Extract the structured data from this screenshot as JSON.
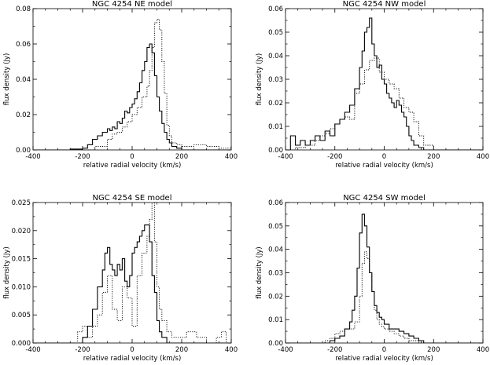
{
  "figure": {
    "background": "#ffffff",
    "line_color": "#000000"
  },
  "chart_data": [
    {
      "type": "line",
      "title": "NGC 4254 NE model",
      "xlabel": "relative radial velocity (km/s)",
      "ylabel": "flux density (Jy)",
      "xlim": [
        -400,
        400
      ],
      "ylim": [
        0,
        0.08
      ],
      "xticks": [
        -400,
        -200,
        0,
        200,
        400
      ],
      "yticks": [
        0.0,
        0.02,
        0.04,
        0.06,
        0.08
      ],
      "ytick_labels": [
        "0.00",
        "0.02",
        "0.04",
        "0.06",
        "0.08"
      ],
      "series": [
        {
          "style": "solid",
          "x": [
            -400,
            -300,
            -250,
            -200,
            -180,
            -160,
            -140,
            -120,
            -100,
            -90,
            -80,
            -70,
            -60,
            -50,
            -40,
            -30,
            -20,
            -10,
            0,
            10,
            20,
            30,
            40,
            50,
            60,
            70,
            80,
            90,
            100,
            110,
            120,
            130,
            140,
            150,
            160,
            180,
            200,
            300,
            400
          ],
          "y": [
            0.0,
            0.0,
            0.0005,
            0.001,
            0.003,
            0.006,
            0.008,
            0.01,
            0.012,
            0.011,
            0.013,
            0.012,
            0.016,
            0.015,
            0.018,
            0.022,
            0.021,
            0.024,
            0.026,
            0.029,
            0.033,
            0.038,
            0.045,
            0.05,
            0.058,
            0.06,
            0.055,
            0.042,
            0.03,
            0.022,
            0.015,
            0.01,
            0.006,
            0.004,
            0.002,
            0.001,
            0.0,
            0.0,
            0.0
          ]
        },
        {
          "style": "dotted",
          "x": [
            -400,
            -200,
            -150,
            -100,
            -80,
            -60,
            -40,
            -20,
            0,
            20,
            40,
            60,
            70,
            80,
            90,
            100,
            110,
            120,
            130,
            140,
            150,
            160,
            180,
            200,
            250,
            300,
            350,
            400
          ],
          "y": [
            0.0,
            0.0,
            0.002,
            0.006,
            0.009,
            0.01,
            0.013,
            0.016,
            0.02,
            0.024,
            0.03,
            0.036,
            0.045,
            0.058,
            0.072,
            0.074,
            0.068,
            0.05,
            0.032,
            0.014,
            0.008,
            0.004,
            0.003,
            0.002,
            0.003,
            0.002,
            0.001,
            0.0
          ]
        }
      ]
    },
    {
      "type": "line",
      "title": "NGC 4254 NW model",
      "xlabel": "relative radial velocity (km/s)",
      "ylabel": "flux density (Jy)",
      "xlim": [
        -400,
        400
      ],
      "ylim": [
        0,
        0.06
      ],
      "xticks": [
        -400,
        -200,
        0,
        200,
        400
      ],
      "yticks": [
        0.0,
        0.01,
        0.02,
        0.03,
        0.04,
        0.05,
        0.06
      ],
      "ytick_labels": [
        "0.00",
        "0.01",
        "0.02",
        "0.03",
        "0.04",
        "0.05",
        "0.06"
      ],
      "series": [
        {
          "style": "solid",
          "x": [
            -400,
            -380,
            -360,
            -340,
            -320,
            -300,
            -280,
            -260,
            -240,
            -220,
            -200,
            -180,
            -160,
            -140,
            -120,
            -100,
            -90,
            -80,
            -70,
            -60,
            -50,
            -40,
            -30,
            -20,
            -10,
            0,
            10,
            20,
            30,
            40,
            50,
            60,
            70,
            80,
            90,
            100,
            110,
            120,
            140,
            160,
            200,
            400
          ],
          "y": [
            0.0,
            0.006,
            0.002,
            0.004,
            0.002,
            0.004,
            0.006,
            0.004,
            0.008,
            0.006,
            0.011,
            0.013,
            0.016,
            0.019,
            0.026,
            0.035,
            0.042,
            0.05,
            0.052,
            0.056,
            0.045,
            0.04,
            0.035,
            0.036,
            0.03,
            0.028,
            0.024,
            0.022,
            0.02,
            0.018,
            0.021,
            0.019,
            0.016,
            0.014,
            0.01,
            0.006,
            0.004,
            0.002,
            0.001,
            0.0,
            0.0,
            0.0
          ]
        },
        {
          "style": "dotted",
          "x": [
            -400,
            -360,
            -320,
            -280,
            -260,
            -240,
            -220,
            -200,
            -180,
            -160,
            -140,
            -120,
            -100,
            -80,
            -60,
            -40,
            -20,
            0,
            20,
            40,
            60,
            80,
            100,
            120,
            140,
            160,
            200,
            400
          ],
          "y": [
            0.0,
            0.001,
            0.002,
            0.004,
            0.006,
            0.007,
            0.009,
            0.011,
            0.013,
            0.014,
            0.013,
            0.024,
            0.028,
            0.034,
            0.038,
            0.039,
            0.033,
            0.03,
            0.028,
            0.026,
            0.022,
            0.018,
            0.016,
            0.012,
            0.006,
            0.002,
            0.0,
            0.0
          ]
        }
      ]
    },
    {
      "type": "line",
      "title": "NGC 4254 SE model",
      "xlabel": "relative radial velocity (km/s)",
      "ylabel": "flux density (Jy)",
      "xlim": [
        -400,
        400
      ],
      "ylim": [
        0,
        0.025
      ],
      "xticks": [
        -400,
        -200,
        0,
        200,
        400
      ],
      "yticks": [
        0.0,
        0.005,
        0.01,
        0.015,
        0.02,
        0.025
      ],
      "ytick_labels": [
        "0.000",
        "0.005",
        "0.010",
        "0.015",
        "0.020",
        "0.025"
      ],
      "series": [
        {
          "style": "solid",
          "x": [
            -400,
            -220,
            -200,
            -180,
            -160,
            -140,
            -120,
            -110,
            -100,
            -90,
            -80,
            -70,
            -60,
            -50,
            -40,
            -30,
            -20,
            -10,
            0,
            10,
            20,
            30,
            40,
            50,
            60,
            70,
            80,
            90,
            100,
            110,
            120,
            140,
            400
          ],
          "y": [
            0.0,
            0.0,
            0.001,
            0.003,
            0.006,
            0.01,
            0.013,
            0.016,
            0.017,
            0.014,
            0.013,
            0.012,
            0.014,
            0.013,
            0.015,
            0.011,
            0.01,
            0.012,
            0.016,
            0.017,
            0.018,
            0.019,
            0.02,
            0.021,
            0.021,
            0.018,
            0.012,
            0.009,
            0.004,
            0.002,
            0.001,
            0.0,
            0.0
          ]
        },
        {
          "style": "dotted",
          "x": [
            -400,
            -240,
            -220,
            -200,
            -180,
            -160,
            -140,
            -120,
            -100,
            -80,
            -60,
            -40,
            -20,
            0,
            20,
            40,
            60,
            70,
            80,
            90,
            100,
            110,
            120,
            140,
            160,
            200,
            220,
            260,
            300,
            340,
            360,
            380,
            400
          ],
          "y": [
            0.0,
            0.0,
            0.002,
            0.003,
            0.001,
            0.003,
            0.005,
            0.009,
            0.012,
            0.006,
            0.004,
            0.01,
            0.008,
            0.003,
            0.012,
            0.016,
            0.019,
            0.022,
            0.025,
            0.018,
            0.01,
            0.006,
            0.004,
            0.002,
            0.001,
            0.001,
            0.002,
            0.001,
            0.0,
            0.001,
            0.002,
            0.0,
            0.0
          ]
        }
      ]
    },
    {
      "type": "line",
      "title": "NGC 4254 SW model",
      "xlabel": "relative radial velocity (km/s)",
      "ylabel": "flux density (Jy)",
      "xlim": [
        -400,
        400
      ],
      "ylim": [
        0,
        0.06
      ],
      "xticks": [
        -400,
        -200,
        0,
        200,
        400
      ],
      "yticks": [
        0.0,
        0.01,
        0.02,
        0.03,
        0.04,
        0.05,
        0.06
      ],
      "ytick_labels": [
        "0.00",
        "0.01",
        "0.02",
        "0.03",
        "0.04",
        "0.05",
        "0.06"
      ],
      "series": [
        {
          "style": "solid",
          "x": [
            -400,
            -240,
            -220,
            -200,
            -180,
            -160,
            -140,
            -130,
            -120,
            -110,
            -100,
            -90,
            -80,
            -70,
            -60,
            -50,
            -40,
            -30,
            -20,
            -10,
            0,
            20,
            40,
            60,
            80,
            100,
            120,
            140,
            160,
            400
          ],
          "y": [
            0.0,
            0.0,
            0.001,
            0.002,
            0.003,
            0.006,
            0.009,
            0.014,
            0.02,
            0.032,
            0.047,
            0.055,
            0.05,
            0.041,
            0.03,
            0.022,
            0.016,
            0.013,
            0.011,
            0.01,
            0.008,
            0.006,
            0.006,
            0.005,
            0.004,
            0.003,
            0.002,
            0.001,
            0.0,
            0.0
          ]
        },
        {
          "style": "dotted",
          "x": [
            -400,
            -260,
            -240,
            -220,
            -200,
            -180,
            -160,
            -140,
            -120,
            -100,
            -90,
            -80,
            -70,
            -60,
            -50,
            -40,
            -30,
            -20,
            -10,
            0,
            20,
            40,
            60,
            80,
            100,
            120,
            140,
            400
          ],
          "y": [
            0.0,
            0.0,
            0.001,
            0.002,
            0.004,
            0.005,
            0.006,
            0.006,
            0.009,
            0.02,
            0.034,
            0.039,
            0.036,
            0.03,
            0.022,
            0.014,
            0.01,
            0.008,
            0.007,
            0.006,
            0.005,
            0.004,
            0.003,
            0.002,
            0.001,
            0.001,
            0.0,
            0.0
          ]
        }
      ]
    }
  ]
}
